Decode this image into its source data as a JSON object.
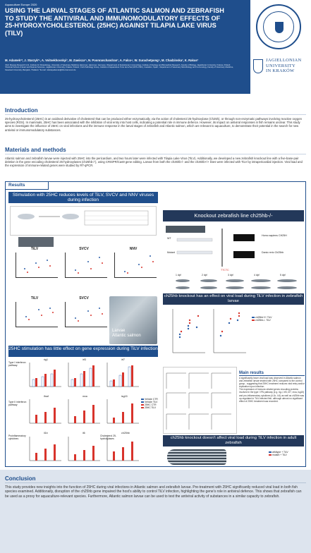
{
  "header": {
    "event": "Aquaculture Europe 2020",
    "title": "Using the larval stages of Atlantic salmon and zebrafish to study the antiviral and immunomodulatory effects of 25-hydroxycholesterol (25HC) against Tilapia Lake Virus (TiLV)",
    "authors": "M. Adamek¹*, J. Starzyk²³, A. Voitsekhovskyi², M. Zawisza²³, N. Poonranchandran², A. Falco⁴, W. Surachetpong⁵, M. Chadzinska², K. Rakus²",
    "affiliations": "¹Fish Disease Research Unit, Institute for Parasitology, University of Veterinary Medicine Hannover, Hannover, Germany; ²Department of Evolutionary Immunology, Institute of Zoology and Biomedical Research, Faculty of Biology, Jagiellonian University, Krakow, Poland; ³Doctoral School of Exact and Natural Sciences, Jagiellonian University, Krakow, Poland; ⁴Fish Pathology Group, Institute of Aquaculture Torre de la Sal (IATS-CSIC), Castellon, Spain; ⁵Department of Veterinary Microbiology and Immunology, Faculty of Veterinary Medicine, Kasetsart University, Bangkok, Thailand. *E-mail: mikolaj.adamek@tiho-hannover.de",
    "logo_text": "Stiftung Tierärztliche Hochschule Hannover",
    "university_name": [
      "JAGIELLONIAN",
      "UNIVERSITY",
      "IN KRAKÓW"
    ]
  },
  "introduction": {
    "title": "Introduction",
    "text": "25-hydroxycholesterol (25HC) is an oxidised derivative of cholesterol that can be produced either enzymatically, via the action of cholesterol 25-hydroxylase (Ch25h), or through non-enzymatic pathways involving reactive oxygen species (ROS). In mammals, 25HC has been associated with the inhibition of viral entry into host cells, indicating a potential role in immune defence. However, its impact on antiviral responses in fish remains unclear. This study aims to investigate the influence of 25HC on viral infections and the immune response in the larval stages of zebrafish and Atlantic salmon, which are relevant to aquaculture, to demonstrate their potential in the search for new antiviral or immunomodulatory substances."
  },
  "methods": {
    "title": "Materials and methods",
    "text": "Atlantic salmon and zebrafish larvae were injected with 25HC into the pericardium, and two hours later were infected with Tilapia Lake Virus (TiLV). Additionally, we developed a new zebrafish knockout line with a five-base-pair deletion in the gene encoding cholesterol 25-hydroxylases (ch25hb-/-), using CRISPR/Cas9 gene editing. Larvae from both the ch25hb-/- and the ch25hb+/+ lines were infected with TiLV by intrapericardial injection. Viral load and the expression of immune-related genes were studied by RT-qPCR."
  },
  "results": {
    "tab": "Results",
    "banner1": "Stimulation with 25HC reduces levels of TiLV, SVCV and NNV viruses during infection",
    "banner2": "Knockout zebrafish line ch25hb-/-",
    "banner3": "ch25hb knockout has an effect on viral load during TiLV infection in zebrafish larvae",
    "banner4": "25HC stimulation has little effect on gene expression during TiLV infection",
    "banner5": "ch25hb knockout doesn't affect viral load during TiLV infection in adult zebrafish",
    "fish_caption": [
      "Larvae",
      "Atlantic salmon"
    ],
    "plot_titles": [
      "TiLV",
      "SVCV",
      "NNV",
      "TiLV",
      "SVCV"
    ],
    "wt_label": "WT",
    "mutant_label": "Mutant",
    "home_label": "Homo sapiens CH25H",
    "danio_label": "Danio rerio Ch25hb",
    "timepoints": [
      "1 dpf",
      "2 dpf",
      "3 dpf",
      "4 dpf",
      "5 dpf"
    ],
    "legend_larvae": [
      "ch25hb+/+ TiLV",
      "ch25hb-/- TiLV"
    ],
    "legend_adult": [
      "wildtype + TiLV",
      "mutant + TiLV"
    ],
    "gene_groups": [
      "Type I interferon pathway",
      "Type II interferon pathway",
      "Proinflammatory cytokines",
      "Cholesterol 25-hydroxylases"
    ],
    "gene_names": [
      "rig1",
      "irf3",
      "mxa",
      "irf7",
      "ifnaf",
      "mxa",
      "isg15",
      "ifng",
      "il1b",
      "il6",
      "ch25hb",
      "ch25ha"
    ],
    "gene_legend": [
      "Vehicle CTR",
      "Vehicle TiLV",
      "25HC CTR",
      "25HC TiLV"
    ],
    "main_results": {
      "title": "Main results",
      "points": [
        "A significantly lower viral load was observed in Atlantic salmon and zebrafish larvae treated with 25HC compared to the control group - suggesting that 25HC treatment reduces viral entry and/or replication upon infection.",
        "The expression of immune-related genes encoding proteins involved in the type I IFN pathway (e.g. rig-I, irf3, irf7, mxa, isg15) and pro-inflammatory cytokines (il-1b, il-6) as well as ch25hb was up-regulated in TiLV-infected fish, although almost no significant effect of 25HC treatment was recorded.",
        "In case of ch25hb-/- knock-out zebrafish, no notable differences in terms of development and survival were observed as compared to the ch25hb+/+. Interestingly, upon TiLV infection, viral load was significantly higher in ch25hb-/- zebrafish compared to ch25hb+/+ controls, which suggest that loss of ch25hb compromised the host's capacity to control TiLV replication.",
        "This observation was reinforced by gene expression analysis, which revealed a significant lower expression of multiple antiviral response genes in the ch25hb-/- zebrafish."
      ]
    }
  },
  "conclusion": {
    "title": "Conclusion",
    "text": "This study provides new insights into the function of 25HC during viral infections in Atlantic salmon and zebrafish larvae. Pre-treatment with 25HC significantly reduced viral load in both fish species examined. Additionally, disruption of the ch25hb gene impaired the host's ability to control TiLV infection, highlighting the gene's role in antiviral defence. This shows that zebrafish can be used as a proxy for aquaculture-relevant species. Furthermore, Atlantic salmon larvae can be used to test the antiviral activity of substances in a similar capacity to zebrafish."
  },
  "colors": {
    "brand": "#1f4e8c",
    "series_control": "#2a5ea8",
    "series_treated": "#d8342c"
  }
}
